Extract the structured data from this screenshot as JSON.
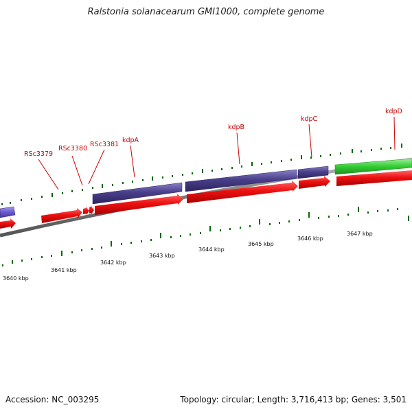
{
  "title": "Ralstonia solanacearum GMI1000, complete genome",
  "accession": "Accession: NC_003295",
  "summary": "Topology: circular; Length: 3,716,413 bp; Genes: 3,501",
  "gene_labels": [
    "RSc3379",
    "RSc3380",
    "RSc3381",
    "kdpA",
    "kdpB",
    "kdpC",
    "kdpD"
  ],
  "kbp_labels": [
    "3640 kbp",
    "3641 kbp",
    "3642 kbp",
    "3643 kbp",
    "3644 kbp",
    "3645 kbp",
    "3646 kbp",
    "3647 kbp"
  ],
  "colors": {
    "cds": "#ee1111",
    "gene_purple": "#4a3f8a",
    "gene_violet": "#6a5acd",
    "gene_green": "#33cc33",
    "label_red": "#cc0000",
    "tick_green": "#006600",
    "backbone": "#808080"
  }
}
